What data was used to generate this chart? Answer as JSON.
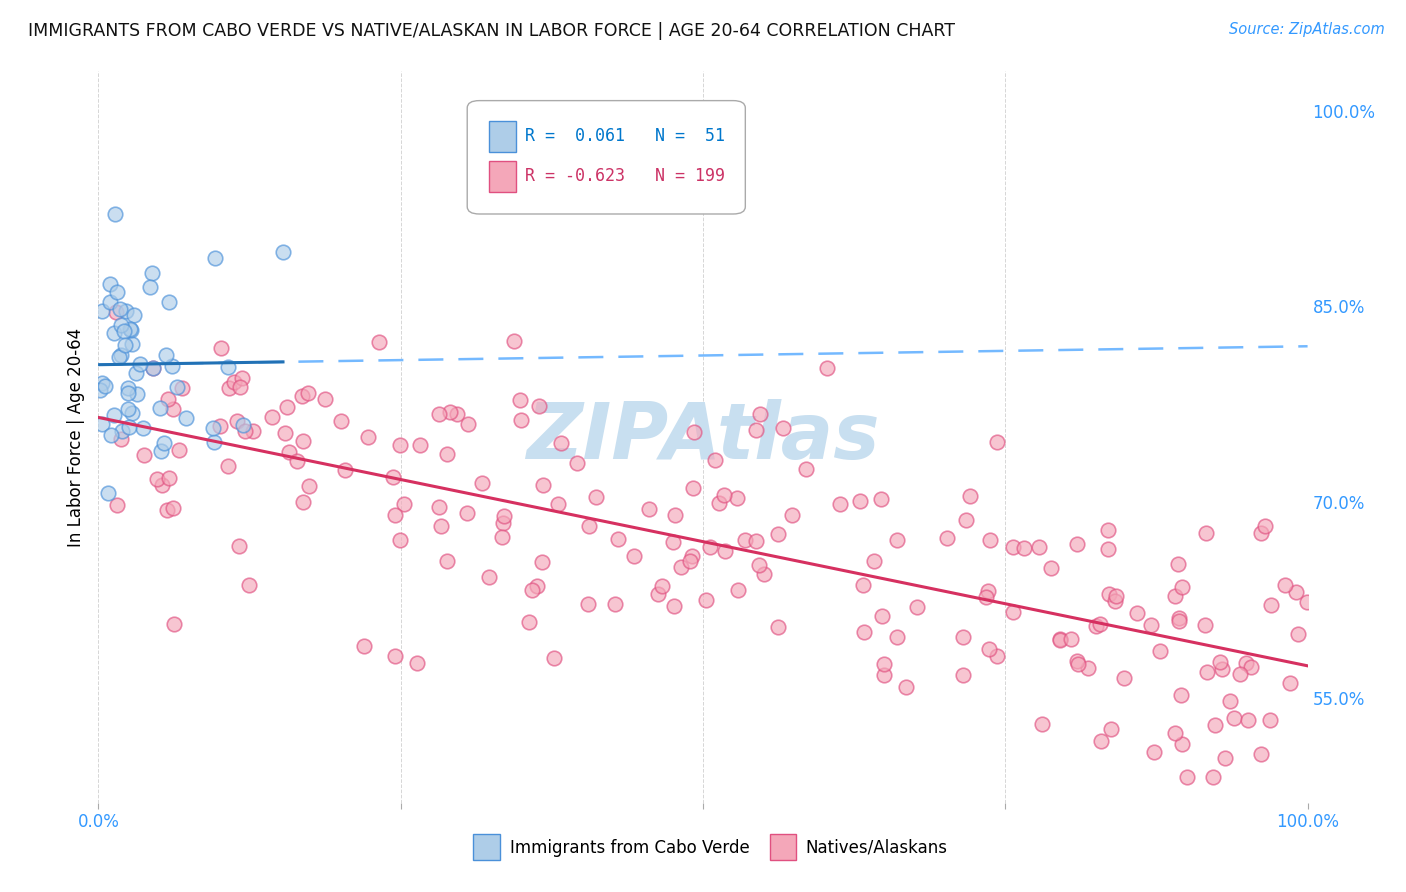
{
  "title": "IMMIGRANTS FROM CABO VERDE VS NATIVE/ALASKAN IN LABOR FORCE | AGE 20-64 CORRELATION CHART",
  "source_text": "Source: ZipAtlas.com",
  "ylabel": "In Labor Force | Age 20-64",
  "right_ytick_labels": [
    "100.0%",
    "85.0%",
    "70.0%",
    "55.0%"
  ],
  "right_ytick_positions": [
    1.0,
    0.85,
    0.7,
    0.55
  ],
  "r_cabo": 0.061,
  "n_cabo": 51,
  "r_native": -0.623,
  "n_native": 199,
  "blue_fill": "#aecde8",
  "blue_edge": "#4a90d9",
  "pink_fill": "#f4a7b9",
  "pink_edge": "#e05080",
  "blue_line_color": "#2171b5",
  "pink_line_color": "#d63060",
  "blue_dashed_color": "#74b9ff",
  "watermark_text": "ZIPAtlas",
  "watermark_color": "#c8dff0",
  "background_color": "#ffffff",
  "grid_color": "#cccccc",
  "title_color": "#111111",
  "axis_tick_color": "#3399ff",
  "legend_r_blue": "#0077cc",
  "legend_n_blue": "#0077cc",
  "legend_r_pink": "#cc3366",
  "legend_n_pink": "#cc3366",
  "xlim": [
    0.0,
    1.0
  ],
  "ylim": [
    0.47,
    1.03
  ]
}
